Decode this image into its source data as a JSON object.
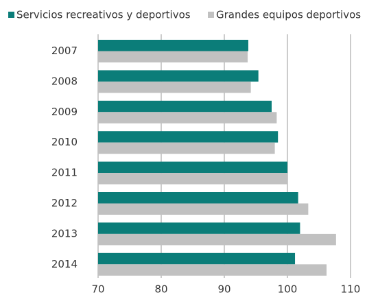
{
  "chart_data": {
    "type": "barh",
    "categories": [
      "2007",
      "2008",
      "2009",
      "2010",
      "2011",
      "2012",
      "2013",
      "2014"
    ],
    "series": [
      {
        "name": "Servicios recreativos y deportivos",
        "color": "#0b7d79",
        "values": [
          93.8,
          95.4,
          97.5,
          98.5,
          100,
          101.7,
          102,
          101.2
        ]
      },
      {
        "name": "Grandes equipos deportivos",
        "color": "#c1c1c1",
        "values": [
          93.7,
          94.2,
          98.3,
          98.0,
          100,
          103.3,
          107.7,
          106.2
        ]
      }
    ],
    "xlim": [
      70,
      110
    ],
    "xticks": [
      70,
      80,
      90,
      100,
      110
    ],
    "grid": true,
    "legend": "top"
  }
}
